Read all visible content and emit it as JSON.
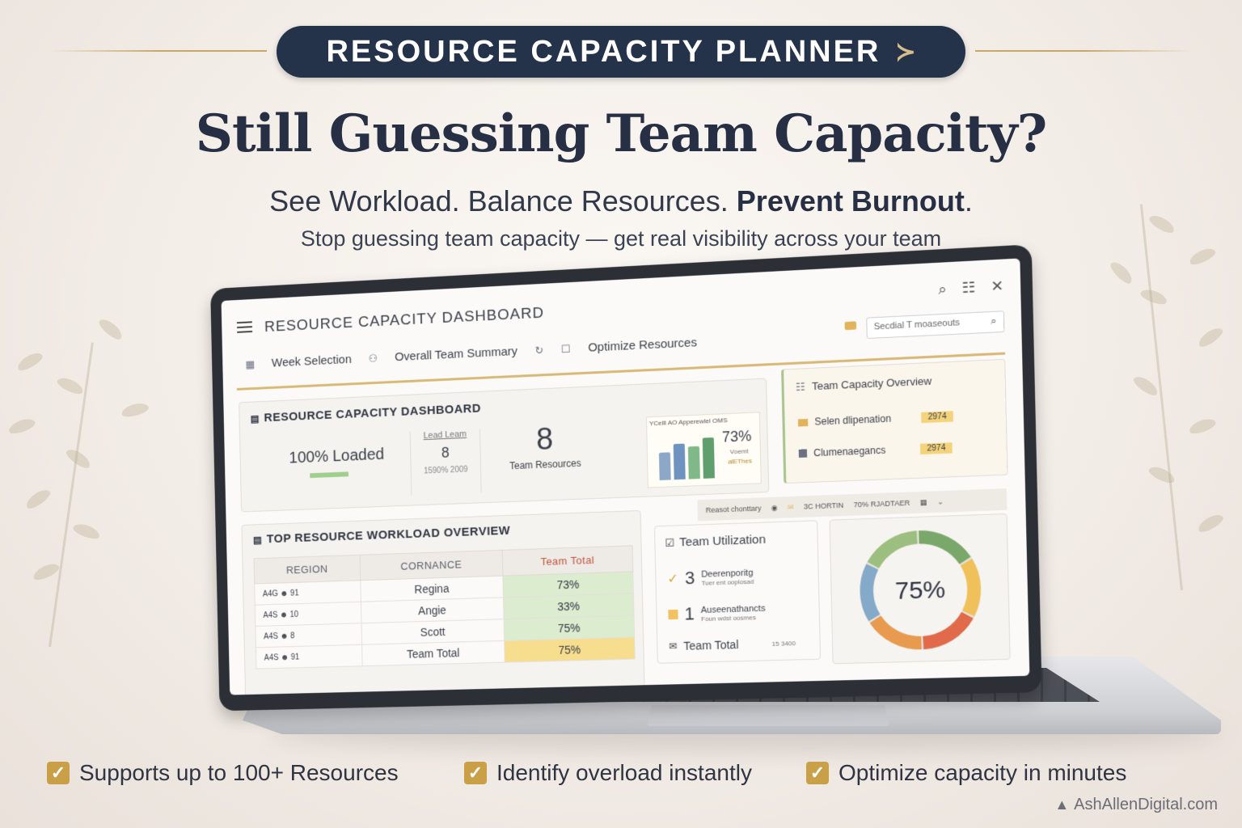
{
  "banner": {
    "title": "RESOURCE CAPACITY PLANNER",
    "arrow": "≻"
  },
  "headline": "Still Guessing Team Capacity?",
  "subhead": {
    "part1": "See Workload. Balance Resources. ",
    "bold": "Prevent Burnout",
    "end": "."
  },
  "tagline": "Stop guessing team capacity — get real visibility across your team",
  "app": {
    "title": "RESOURCE CAPACITY DASHBOARD",
    "window_icons": {
      "search": "⌕",
      "list": "☷",
      "close": "✕"
    },
    "toolbar": {
      "week": "Week Selection",
      "summary": "Overall Team Summary",
      "optimize": "Optimize Resources"
    },
    "search_placeholder": "Secdial T moaseouts",
    "summary_panel": {
      "title": "RESOURCE CAPACITY DASHBOARD",
      "loaded_value": "100% Loaded",
      "lead_label": "Lead Leam",
      "lead_value": "8",
      "lead_sub": "1590% 2009",
      "resources_value": "8",
      "resources_label": "Team Resources",
      "chart_caption": "YCelll AO Apperewlel OMS",
      "chart_pct": "73%",
      "chart_note1": "Voemt",
      "chart_note2": "alEThes"
    },
    "capacity_overview": {
      "title": "Team Capacity Overview",
      "items": [
        {
          "label": "Selen dlipenation",
          "badge": "2974"
        },
        {
          "label": "Clumenaegancs",
          "badge": "2974"
        }
      ]
    },
    "mid_bar": {
      "left": "Reasot chonttary",
      "mid1": "3C HORTIN",
      "mid2": "70% RJADTAER"
    },
    "workload": {
      "title": "TOP RESOURCE WORKLOAD OVERVIEW",
      "columns": [
        "REGION",
        "CORNANCE",
        "Team Total"
      ],
      "rows": [
        {
          "tag": "A4G",
          "num": "91",
          "name": "Regina",
          "pct": "73%"
        },
        {
          "tag": "A4S",
          "num": "10",
          "name": "Angie",
          "pct": "33%"
        },
        {
          "tag": "A4S",
          "num": "8",
          "name": "Scott",
          "pct": "75%"
        },
        {
          "tag": "A4S",
          "num": "91",
          "name": "Team Total",
          "pct": "75%"
        }
      ]
    },
    "utilization": {
      "title": "Team Utilization",
      "row1_num": "3",
      "row1_label": "Deerenporitg",
      "row1_sub": "Tuer ent ooplosad",
      "row2_num": "1",
      "row2_label": "Auseenathancts",
      "row2_sub": "Foun wdst oosmes",
      "footer": "Team Total",
      "footer_num": "15 3400"
    },
    "donut": {
      "value": "75%",
      "percent": 75
    }
  },
  "features": [
    "Supports up to 100+ Resources",
    "Identify overload instantly",
    "Optimize capacity in minutes"
  ],
  "brand": "AshAllenDigital.com",
  "colors": {
    "navy": "#24324a",
    "gold": "#c9a048",
    "green": "#dceccf",
    "yellow": "#f7de8e"
  }
}
